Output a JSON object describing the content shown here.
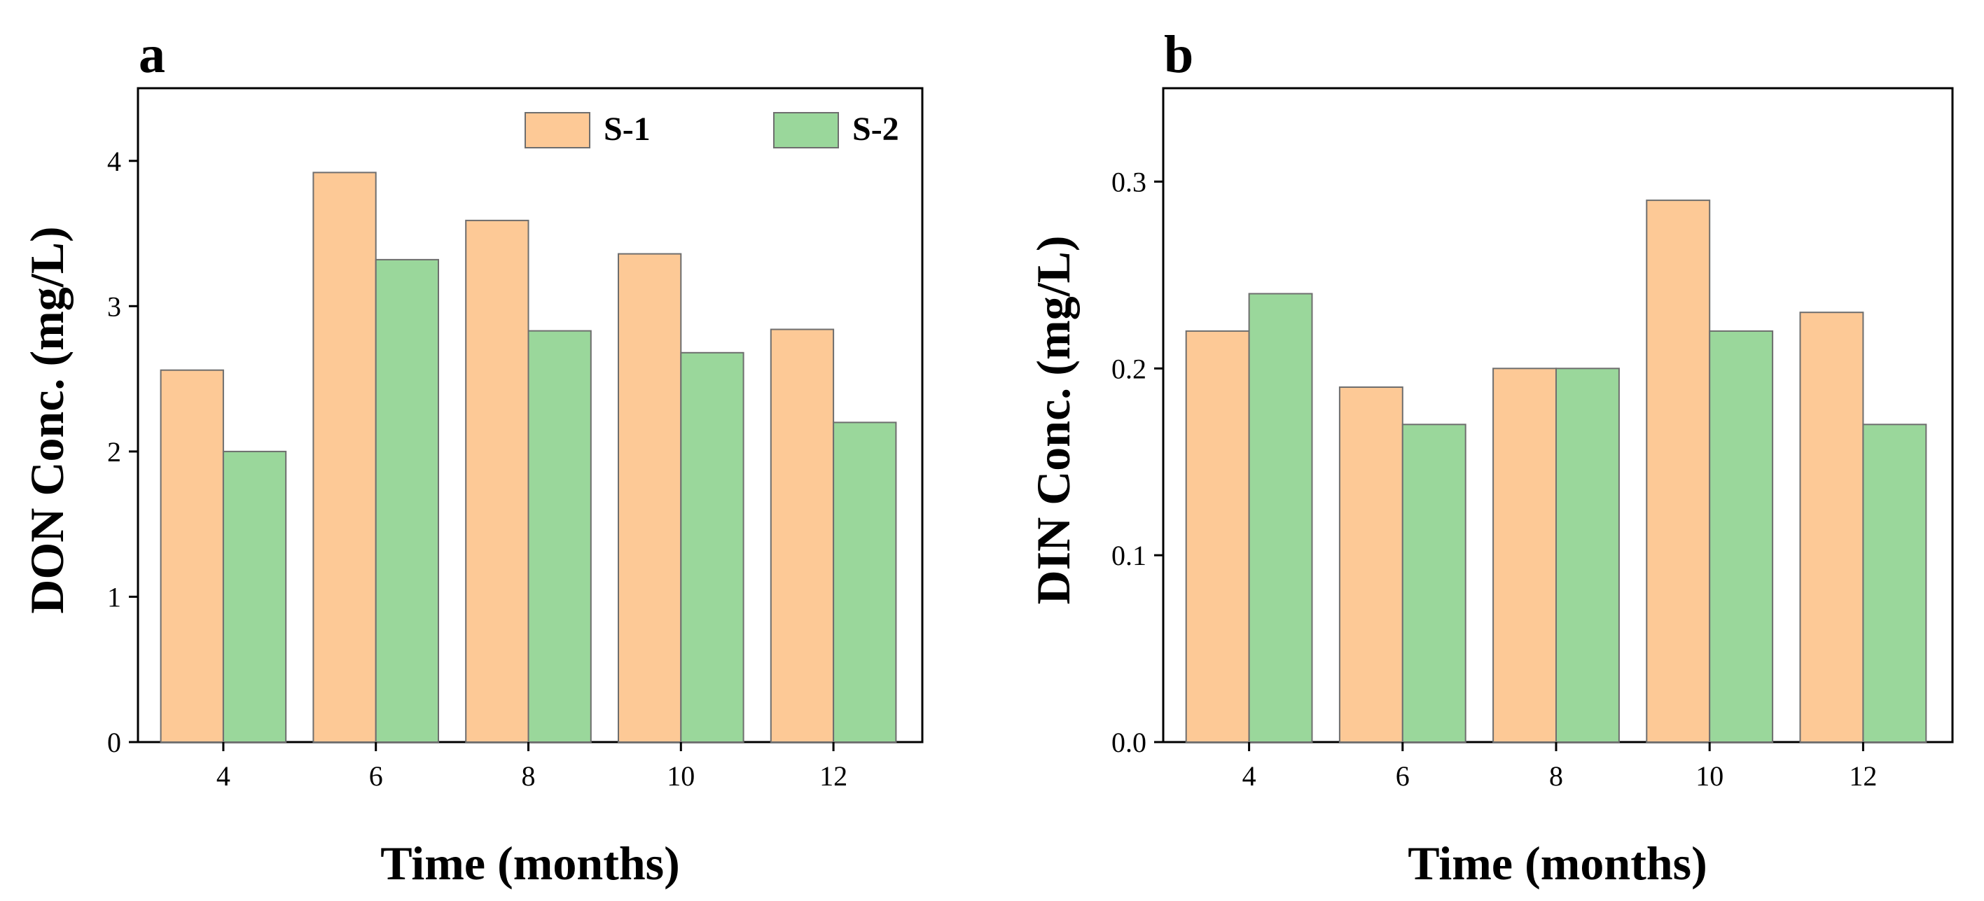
{
  "colors": {
    "s1": "#fdc996",
    "s2": "#9ad79b",
    "bar_edge": "#6e6e6e",
    "axis": "#000000"
  },
  "chart_data": [
    {
      "type": "bar",
      "panel_letter": "a",
      "title": "",
      "xlabel": "Time (months)",
      "ylabel": "DON Conc. (mg/L)",
      "categories": [
        "4",
        "6",
        "8",
        "10",
        "12"
      ],
      "series": [
        {
          "name": "S-1",
          "values": [
            2.56,
            3.92,
            3.59,
            3.36,
            2.84
          ]
        },
        {
          "name": "S-2",
          "values": [
            2.0,
            3.32,
            2.83,
            2.68,
            2.2
          ]
        }
      ],
      "ylim": [
        0,
        4.5
      ],
      "yticks": [
        0,
        1,
        2,
        3,
        4
      ],
      "ytick_labels": [
        "0",
        "1",
        "2",
        "3",
        "4"
      ],
      "legend": {
        "placement": "top-right",
        "entries": [
          "S-1",
          "S-2"
        ]
      },
      "grid": false
    },
    {
      "type": "bar",
      "panel_letter": "b",
      "title": "",
      "xlabel": "Time (months)",
      "ylabel": "DIN Conc. (mg/L)",
      "categories": [
        "4",
        "6",
        "8",
        "10",
        "12"
      ],
      "series": [
        {
          "name": "S-1",
          "values": [
            0.22,
            0.19,
            0.2,
            0.29,
            0.23
          ]
        },
        {
          "name": "S-2",
          "values": [
            0.24,
            0.17,
            0.2,
            0.22,
            0.17
          ]
        }
      ],
      "ylim": [
        0,
        0.35
      ],
      "yticks": [
        0,
        0.1,
        0.2,
        0.3
      ],
      "ytick_labels": [
        "0.0",
        "0.1",
        "0.2",
        "0.3"
      ],
      "legend": null,
      "grid": false
    }
  ]
}
